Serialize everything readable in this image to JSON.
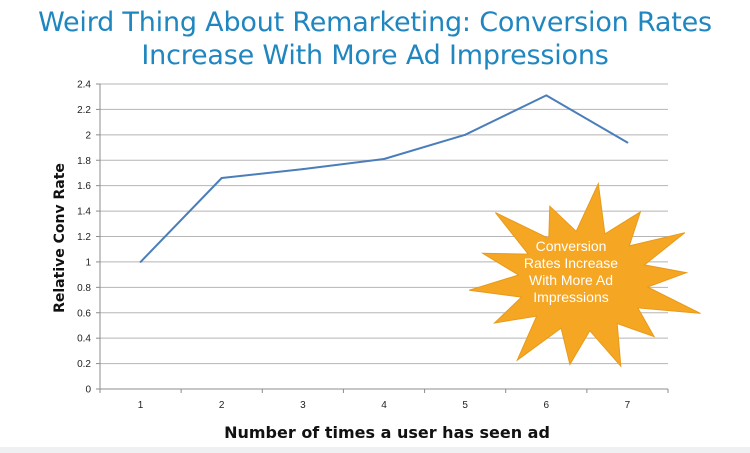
{
  "slide": {
    "title_line1": "Weird Thing About Remarketing: Conversion Rates",
    "title_line2": "Increase With More Ad Impressions"
  },
  "chart_data": {
    "type": "line",
    "x": [
      1,
      2,
      3,
      4,
      5,
      6,
      7
    ],
    "xticks": [
      "1",
      "2",
      "3",
      "4",
      "5",
      "6",
      "7"
    ],
    "series": [
      {
        "values": [
          1.0,
          1.66,
          1.73,
          1.81,
          2.0,
          2.31,
          1.94
        ]
      }
    ],
    "xlabel": "Number of times a user has seen ad",
    "ylabel": "Relative Conv Rate",
    "ylim": [
      0,
      2.4
    ],
    "yticks": [
      "0",
      "0.2",
      "0.4",
      "0.6",
      "0.8",
      "1",
      "1.2",
      "1.4",
      "1.6",
      "1.8",
      "2",
      "2.2",
      "2.4"
    ],
    "grid": true,
    "legend": "none",
    "line_color": "#4a7ebb",
    "annotation": {
      "lines": [
        "Conversion",
        "Rates Increase",
        "With More Ad",
        "Impressions"
      ],
      "color": "#f5a623"
    }
  }
}
